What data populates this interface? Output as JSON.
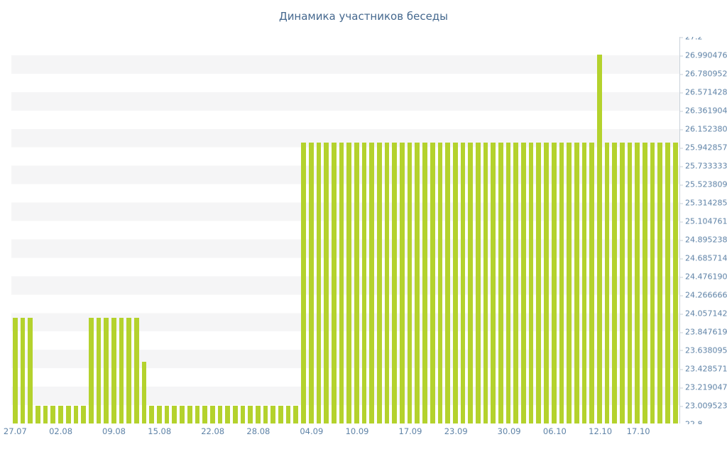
{
  "colors": {
    "bar": "#b4d22d",
    "title_text": "#45688e",
    "axis_text": "#5f83a7",
    "axis_line": "#c9d1d9",
    "stripe_light": "#ffffff",
    "stripe_gray": "#f5f5f6",
    "background": "#ffffff"
  },
  "chart_data": {
    "type": "bar",
    "title": "Динамика участников беседы",
    "xlabel": "",
    "ylabel": "",
    "ylim": [
      22.8,
      27.2
    ],
    "grid": "horizontal-stripes",
    "legend": "none",
    "y_axis_side": "right",
    "bar_color": "#b4d22d",
    "y_ticks": [
      "27.2",
      "26.990476",
      "26.780952",
      "26.571428",
      "26.361904",
      "26.152380",
      "25.942857",
      "25.733333",
      "25.523809",
      "25.314285",
      "25.104761",
      "24.895238",
      "24.685714",
      "24.476190",
      "24.266666",
      "24.057142",
      "23.847619",
      "23.638095",
      "23.428571",
      "23.219047",
      "23.009523",
      "22.8"
    ],
    "x_tick_labels": [
      {
        "label": "27.07",
        "index": 0
      },
      {
        "label": "02.08",
        "index": 6
      },
      {
        "label": "09.08",
        "index": 13
      },
      {
        "label": "15.08",
        "index": 19
      },
      {
        "label": "22.08",
        "index": 26
      },
      {
        "label": "28.08",
        "index": 32
      },
      {
        "label": "04.09",
        "index": 39
      },
      {
        "label": "10.09",
        "index": 45
      },
      {
        "label": "17.09",
        "index": 52
      },
      {
        "label": "23.09",
        "index": 58
      },
      {
        "label": "30.09",
        "index": 65
      },
      {
        "label": "06.10",
        "index": 71
      },
      {
        "label": "12.10",
        "index": 77
      },
      {
        "label": "17.10",
        "index": 82
      }
    ],
    "values": [
      24,
      24,
      24,
      23,
      23,
      23,
      23,
      23,
      23,
      23,
      24,
      24,
      24,
      24,
      24,
      24,
      24,
      23.5,
      23,
      23,
      23,
      23,
      23,
      23,
      23,
      23,
      23,
      23,
      23,
      23,
      23,
      23,
      23,
      23,
      23,
      23,
      23,
      23,
      26,
      26,
      26,
      26,
      26,
      26,
      26,
      26,
      26,
      26,
      26,
      26,
      26,
      26,
      26,
      26,
      26,
      26,
      26,
      26,
      26,
      26,
      26,
      26,
      26,
      26,
      26,
      26,
      26,
      26,
      26,
      26,
      26,
      26,
      26,
      26,
      26,
      26,
      26,
      27,
      26,
      26,
      26,
      26,
      26,
      26,
      26,
      26,
      26,
      26
    ]
  }
}
